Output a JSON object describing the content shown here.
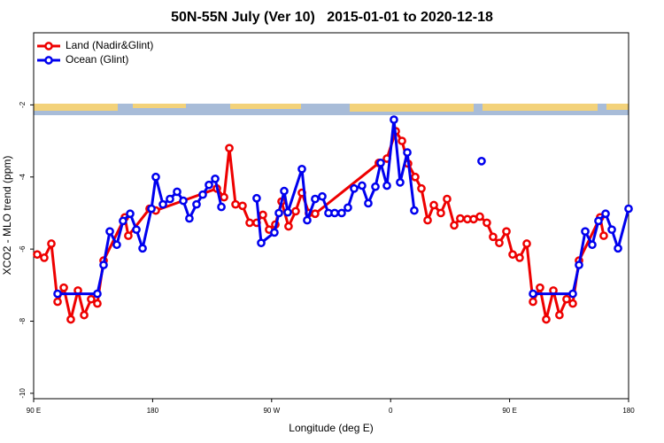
{
  "chart_data": {
    "type": "line",
    "title": "50N-55N July (Ver 10)   2015-01-01 to 2020-12-18",
    "x_label": "Longitude (deg E)",
    "y_label": "XCO2 - MLO trend (ppm)",
    "xlim": [
      90,
      540
    ],
    "ylim": [
      -10.15,
      0
    ],
    "xticks": [
      {
        "value": 90,
        "label": "90 E"
      },
      {
        "value": 180,
        "label": "180"
      },
      {
        "value": 270,
        "label": "90 W"
      },
      {
        "value": 360,
        "label": "0"
      },
      {
        "value": 450,
        "label": "90 E"
      },
      {
        "value": 540,
        "label": "180"
      }
    ],
    "yticks": [
      -2,
      -4,
      -6,
      -8,
      -10
    ],
    "legend": "top-left",
    "series": [
      {
        "name": "Land (Nadir&Glint)",
        "color": "#ee0000",
        "x": [
          92.7,
          98.0,
          103.4,
          108.1,
          112.8,
          118.1,
          123.5,
          128.2,
          133.5,
          138.2,
          142.9,
          159.0,
          161.6,
          177.7,
          182.4,
          228.6,
          234.0,
          238.0,
          242.7,
          248.0,
          253.4,
          258.7,
          263.4,
          268.1,
          272.8,
          277.5,
          282.8,
          288.2,
          292.9,
          298.2,
          302.9,
          351.1,
          357.2,
          363.9,
          368.6,
          373.2,
          378.6,
          383.3,
          388.0,
          392.7,
          398.0,
          402.7,
          408.1,
          412.7,
          418.1,
          422.8,
          427.5,
          432.8,
          437.5,
          442.2,
          447.6,
          452.3,
          457.6,
          463.0,
          467.7,
          473.0,
          477.7,
          483.1,
          487.7,
          493.1,
          497.8,
          502.5,
          518.5,
          521.2
        ],
        "values": [
          -6.15,
          -6.24,
          -5.85,
          -7.46,
          -7.07,
          -7.95,
          -7.15,
          -7.83,
          -7.39,
          -7.51,
          -6.32,
          -5.12,
          -5.63,
          -4.88,
          -4.93,
          -4.32,
          -4.56,
          -3.2,
          -4.76,
          -4.8,
          -5.27,
          -5.27,
          -5.05,
          -5.46,
          -5.32,
          -4.68,
          -5.37,
          -4.95,
          -4.44,
          -5.0,
          -5.02,
          -3.61,
          -3.49,
          -2.73,
          -3.0,
          -3.63,
          -4.0,
          -4.32,
          -5.2,
          -4.78,
          -5.0,
          -4.61,
          -5.34,
          -5.15,
          -5.17,
          -5.17,
          -5.1,
          -5.27,
          -5.66,
          -5.83,
          -5.51,
          -6.15,
          -6.24,
          -5.85,
          -7.46,
          -7.07,
          -7.95,
          -7.15,
          -7.83,
          -7.39,
          -7.51,
          -6.32,
          -5.12,
          -5.63
        ]
      },
      {
        "name": "Ocean (Glint)",
        "color": "#0000ee",
        "x": [
          108.1,
          138.2,
          142.9,
          147.6,
          152.9,
          157.6,
          163.0,
          167.7,
          172.4,
          179.1,
          182.4,
          187.8,
          193.1,
          198.5,
          203.2,
          207.8,
          213.2,
          217.9,
          222.6,
          227.3,
          232.0,
          null,
          258.7,
          262.1,
          272.1,
          275.5,
          279.5,
          282.2,
          292.9,
          296.9,
          302.9,
          308.3,
          313.0,
          317.7,
          323.0,
          327.7,
          332.4,
          338.4,
          343.1,
          348.5,
          352.5,
          357.2,
          362.5,
          367.2,
          372.6,
          377.9,
          null,
          428.8,
          null,
          467.7,
          497.8,
          502.5,
          507.2,
          512.5,
          517.2,
          522.6,
          527.3,
          532.0,
          540.0
        ],
        "values": [
          -7.24,
          -7.24,
          -6.44,
          -5.51,
          -5.88,
          -5.22,
          -5.02,
          -5.46,
          -5.98,
          -4.88,
          -4.0,
          -4.76,
          -4.61,
          -4.41,
          -4.66,
          -5.15,
          -4.76,
          -4.49,
          -4.22,
          -4.05,
          -4.83,
          null,
          -4.59,
          -5.83,
          -5.54,
          -5.0,
          -4.39,
          -4.98,
          -3.78,
          -5.2,
          -4.61,
          -4.54,
          -5.0,
          -5.0,
          -5.0,
          -4.85,
          -4.32,
          -4.24,
          -4.73,
          -4.27,
          -3.61,
          -4.24,
          -2.41,
          -4.15,
          -3.32,
          -4.93,
          null,
          -3.56,
          null,
          -7.24,
          -7.24,
          -6.44,
          -5.51,
          -5.88,
          -5.22,
          -5.02,
          -5.46,
          -5.98,
          -4.88
        ]
      }
    ]
  }
}
